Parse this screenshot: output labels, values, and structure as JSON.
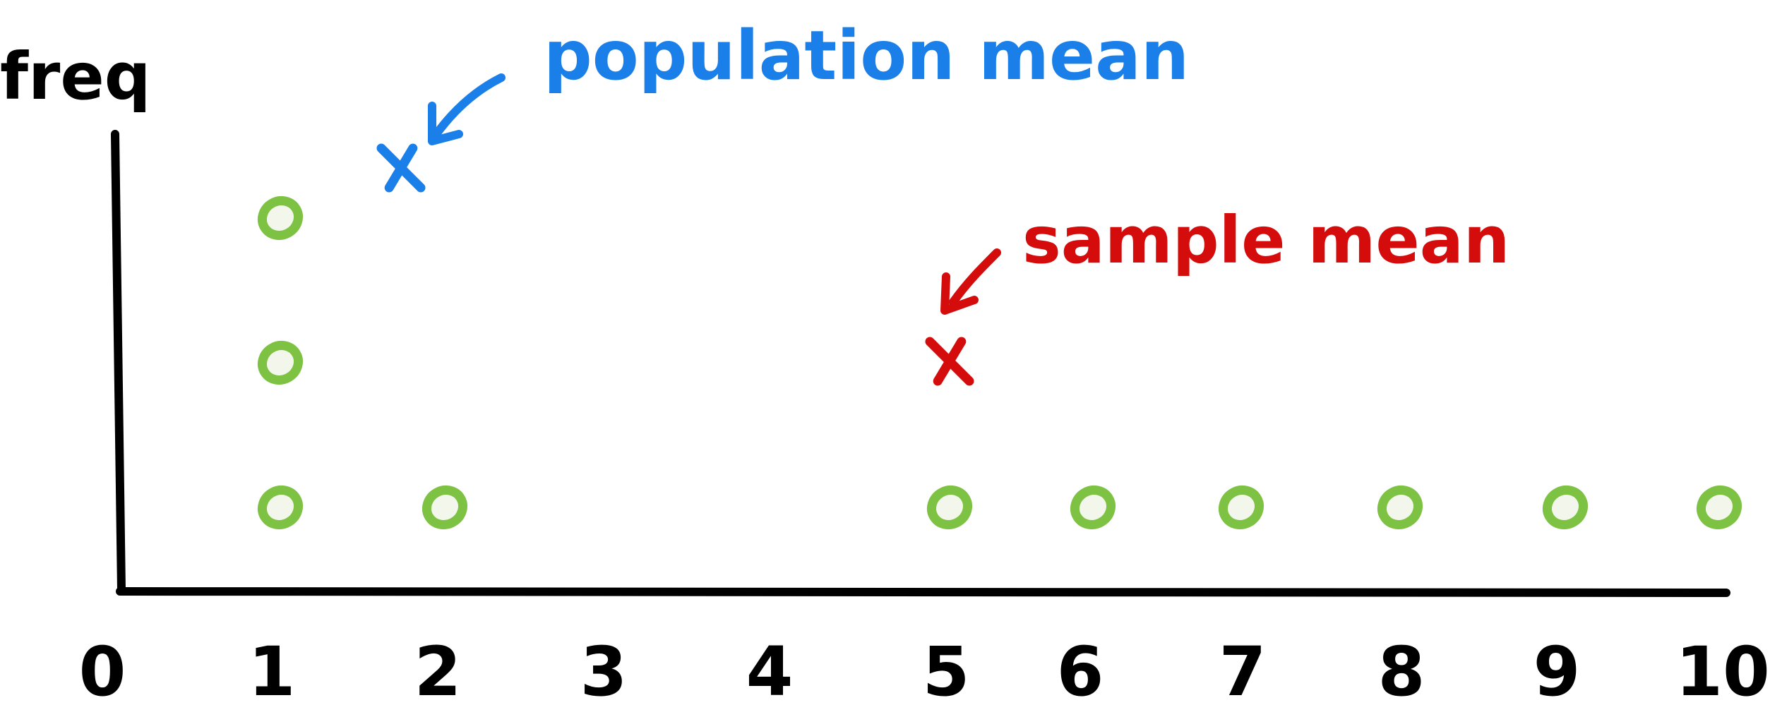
{
  "chart_data": {
    "type": "scatter",
    "title": "",
    "xlabel": "",
    "ylabel": "freq",
    "xlim": [
      0,
      10
    ],
    "ylim": [
      0,
      3
    ],
    "x_ticks": [
      "0",
      "1",
      "2",
      "3",
      "4",
      "5",
      "6",
      "7",
      "8",
      "9",
      "10"
    ],
    "series": [
      {
        "marker": "circle",
        "color": "#7dc242",
        "points": [
          {
            "x": 1,
            "y": 1
          },
          {
            "x": 1,
            "y": 2
          },
          {
            "x": 1,
            "y": 3
          },
          {
            "x": 2,
            "y": 1
          },
          {
            "x": 5,
            "y": 1
          },
          {
            "x": 6,
            "y": 1
          },
          {
            "x": 7,
            "y": 1
          },
          {
            "x": 8,
            "y": 1
          },
          {
            "x": 9,
            "y": 1
          },
          {
            "x": 10,
            "y": 1
          }
        ]
      }
    ],
    "annotations": [
      {
        "text": "population mean",
        "color": "#1a7fe8",
        "marker": "x",
        "x": 1.7,
        "y": 3.6
      },
      {
        "text": "sample mean",
        "color": "#d40c0c",
        "marker": "x",
        "x": 5,
        "y": 2
      }
    ],
    "grid": false,
    "legend": "none"
  }
}
